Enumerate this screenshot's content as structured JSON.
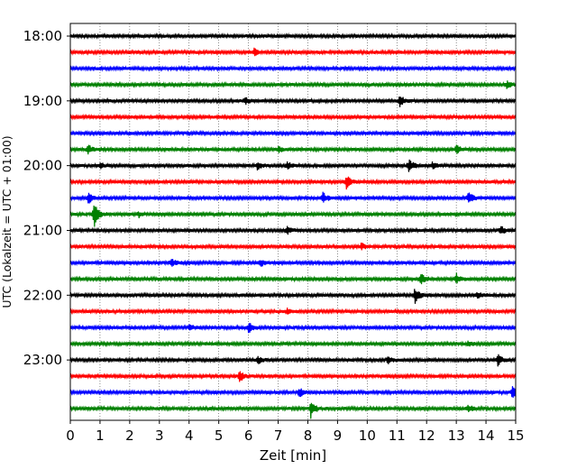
{
  "chart_data": {
    "type": "line",
    "title": "",
    "xlabel": "Zeit  [min]",
    "ylabel": "UTC (Lokalzeit = UTC + 01:00)",
    "xlim": [
      0,
      15
    ],
    "x_ticks": [
      "0",
      "1",
      "2",
      "3",
      "4",
      "5",
      "6",
      "7",
      "8",
      "9",
      "10",
      "11",
      "12",
      "13",
      "14",
      "15"
    ],
    "y_tick_labels": [
      "18:00",
      "19:00",
      "20:00",
      "21:00",
      "22:00",
      "23:00"
    ],
    "grid_x": true,
    "trace_interval_min": 15,
    "trace_start": "18:00",
    "trace_count": 24,
    "color_cycle": [
      "#000000",
      "#ff0000",
      "#0000ff",
      "#008000"
    ],
    "events": [
      {
        "trace": 1,
        "x": 6.2,
        "amp": 0.5
      },
      {
        "trace": 3,
        "x": 14.7,
        "amp": 0.4
      },
      {
        "trace": 4,
        "x": 5.9,
        "amp": 0.4
      },
      {
        "trace": 4,
        "x": 11.1,
        "amp": 0.8
      },
      {
        "trace": 7,
        "x": 0.6,
        "amp": 0.6
      },
      {
        "trace": 7,
        "x": 7.0,
        "amp": 0.35
      },
      {
        "trace": 7,
        "x": 13.0,
        "amp": 0.6
      },
      {
        "trace": 8,
        "x": 1.0,
        "amp": 0.4
      },
      {
        "trace": 8,
        "x": 6.3,
        "amp": 0.4
      },
      {
        "trace": 8,
        "x": 7.3,
        "amp": 0.5
      },
      {
        "trace": 8,
        "x": 11.4,
        "amp": 0.9
      },
      {
        "trace": 8,
        "x": 12.2,
        "amp": 0.45
      },
      {
        "trace": 9,
        "x": 9.3,
        "amp": 0.8
      },
      {
        "trace": 10,
        "x": 0.6,
        "amp": 0.7
      },
      {
        "trace": 10,
        "x": 8.5,
        "amp": 0.7
      },
      {
        "trace": 10,
        "x": 13.4,
        "amp": 0.8
      },
      {
        "trace": 11,
        "x": 0.8,
        "amp": 1.7
      },
      {
        "trace": 11,
        "x": 2.3,
        "amp": 0.35
      },
      {
        "trace": 12,
        "x": 7.3,
        "amp": 0.5
      },
      {
        "trace": 12,
        "x": 14.5,
        "amp": 0.5
      },
      {
        "trace": 13,
        "x": 9.8,
        "amp": 0.4
      },
      {
        "trace": 14,
        "x": 3.4,
        "amp": 0.5
      },
      {
        "trace": 14,
        "x": 6.4,
        "amp": 0.45
      },
      {
        "trace": 15,
        "x": 11.8,
        "amp": 0.8
      },
      {
        "trace": 15,
        "x": 13.0,
        "amp": 0.6
      },
      {
        "trace": 16,
        "x": 11.6,
        "amp": 1.0
      },
      {
        "trace": 16,
        "x": 13.7,
        "amp": 0.5
      },
      {
        "trace": 17,
        "x": 7.3,
        "amp": 0.35
      },
      {
        "trace": 18,
        "x": 6.0,
        "amp": 0.7
      },
      {
        "trace": 18,
        "x": 4.0,
        "amp": 0.35
      },
      {
        "trace": 19,
        "x": 13.4,
        "amp": 0.3
      },
      {
        "trace": 20,
        "x": 6.3,
        "amp": 0.45
      },
      {
        "trace": 20,
        "x": 10.7,
        "amp": 0.45
      },
      {
        "trace": 20,
        "x": 14.4,
        "amp": 0.7
      },
      {
        "trace": 21,
        "x": 5.7,
        "amp": 0.7
      },
      {
        "trace": 22,
        "x": 7.7,
        "amp": 0.7
      },
      {
        "trace": 22,
        "x": 14.9,
        "amp": 1.0
      },
      {
        "trace": 23,
        "x": 8.1,
        "amp": 1.1
      },
      {
        "trace": 23,
        "x": 13.4,
        "amp": 0.45
      }
    ]
  }
}
